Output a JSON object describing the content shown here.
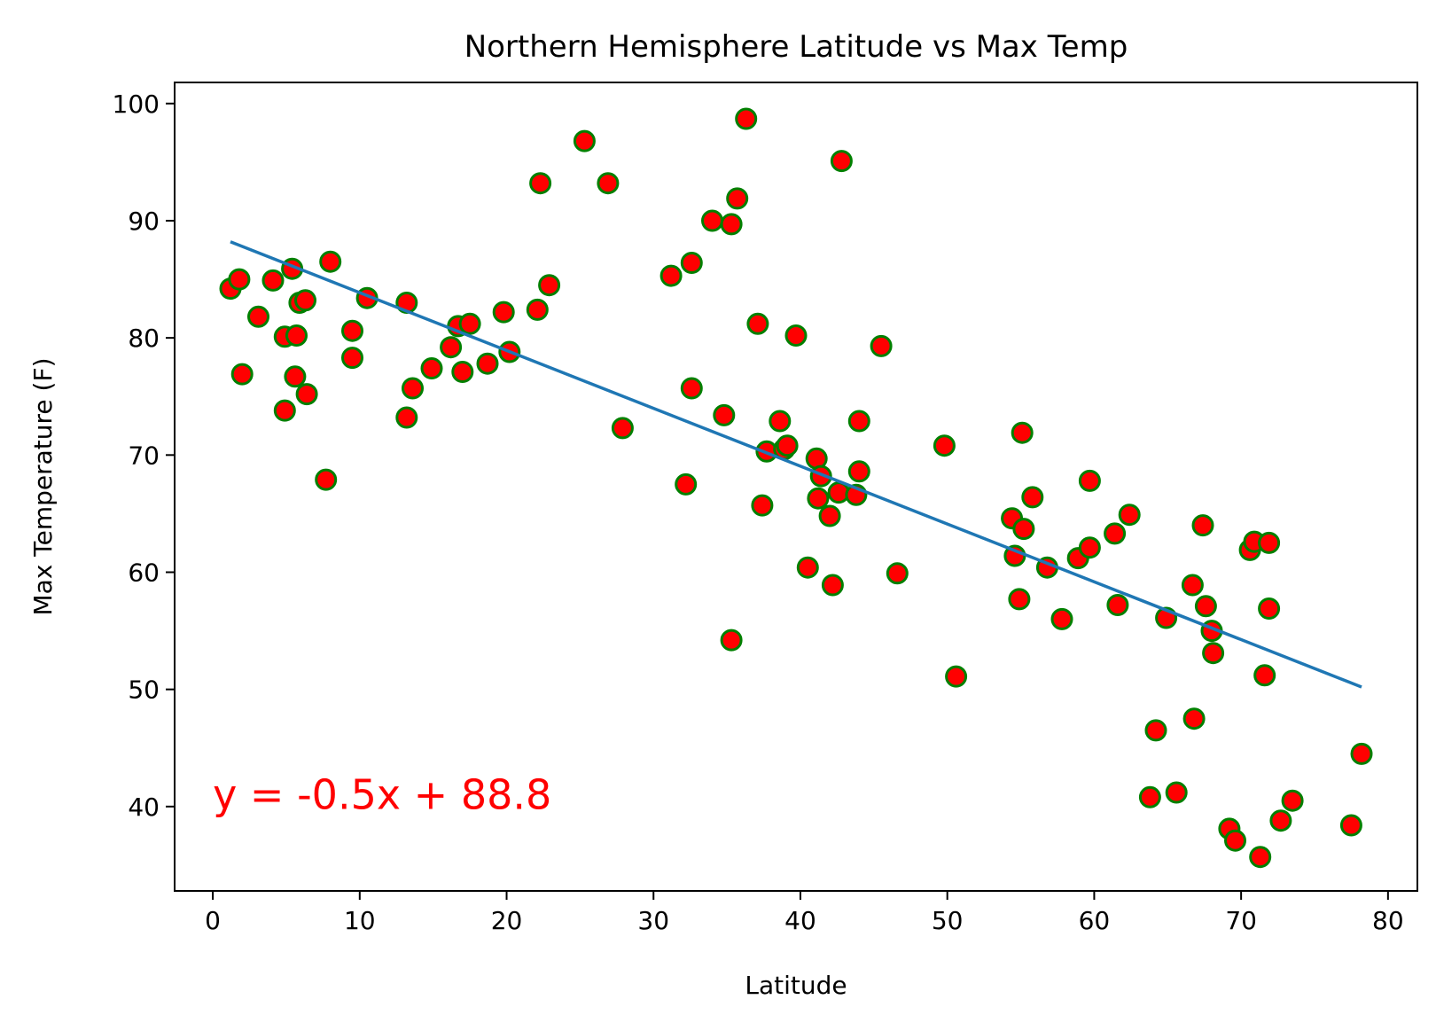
{
  "chart_data": {
    "type": "scatter",
    "title": "Northern Hemisphere Latitude vs Max Temp",
    "xlabel": "Latitude",
    "ylabel": "Max Temperature (F)",
    "xlim": [
      -2.6,
      82.0
    ],
    "ylim": [
      32.8,
      101.8
    ],
    "xticks": [
      0,
      10,
      20,
      30,
      40,
      50,
      60,
      70,
      80
    ],
    "yticks": [
      40,
      50,
      60,
      70,
      80,
      90,
      100
    ],
    "grid": false,
    "marker_face_color": "#ff0000",
    "marker_edge_color": "#008000",
    "line_color": "#1f77b4",
    "annotation_color": "#ff0000",
    "annotation": {
      "text": "y = -0.5x + 88.8",
      "x": 0.0,
      "y": 39.8
    },
    "regression": {
      "x": [
        1.2,
        78.2
      ],
      "y": [
        88.2,
        50.2
      ]
    },
    "points": [
      [
        1.2,
        84.2
      ],
      [
        1.8,
        85.0
      ],
      [
        2.0,
        76.9
      ],
      [
        3.1,
        81.8
      ],
      [
        4.1,
        84.9
      ],
      [
        4.9,
        73.8
      ],
      [
        4.9,
        80.1
      ],
      [
        5.4,
        85.9
      ],
      [
        5.6,
        76.7
      ],
      [
        5.7,
        80.2
      ],
      [
        5.9,
        83.0
      ],
      [
        6.3,
        83.2
      ],
      [
        6.4,
        75.2
      ],
      [
        7.7,
        67.9
      ],
      [
        8.0,
        86.5
      ],
      [
        9.5,
        80.6
      ],
      [
        9.5,
        78.3
      ],
      [
        10.5,
        83.4
      ],
      [
        13.2,
        83.0
      ],
      [
        13.2,
        73.2
      ],
      [
        13.6,
        75.7
      ],
      [
        14.9,
        77.4
      ],
      [
        16.2,
        79.2
      ],
      [
        16.7,
        81.0
      ],
      [
        17.0,
        77.1
      ],
      [
        17.5,
        81.2
      ],
      [
        18.7,
        77.8
      ],
      [
        19.8,
        82.2
      ],
      [
        20.2,
        78.8
      ],
      [
        22.1,
        82.4
      ],
      [
        22.3,
        93.2
      ],
      [
        22.9,
        84.5
      ],
      [
        25.3,
        96.8
      ],
      [
        26.9,
        93.2
      ],
      [
        27.9,
        72.3
      ],
      [
        31.2,
        85.3
      ],
      [
        32.2,
        67.5
      ],
      [
        32.6,
        86.4
      ],
      [
        32.6,
        75.7
      ],
      [
        34.0,
        90.0
      ],
      [
        34.8,
        73.4
      ],
      [
        35.3,
        54.2
      ],
      [
        35.3,
        89.7
      ],
      [
        35.7,
        91.9
      ],
      [
        36.3,
        98.7
      ],
      [
        37.1,
        81.2
      ],
      [
        37.4,
        65.7
      ],
      [
        37.7,
        70.3
      ],
      [
        38.6,
        72.9
      ],
      [
        38.9,
        70.5
      ],
      [
        39.1,
        70.8
      ],
      [
        39.7,
        80.2
      ],
      [
        40.5,
        60.4
      ],
      [
        41.1,
        69.7
      ],
      [
        41.2,
        66.3
      ],
      [
        41.4,
        68.2
      ],
      [
        42.0,
        64.8
      ],
      [
        42.2,
        58.9
      ],
      [
        42.6,
        66.8
      ],
      [
        42.8,
        95.1
      ],
      [
        43.8,
        66.6
      ],
      [
        44.0,
        72.9
      ],
      [
        44.0,
        68.6
      ],
      [
        45.5,
        79.3
      ],
      [
        46.6,
        59.9
      ],
      [
        49.8,
        70.8
      ],
      [
        50.6,
        51.1
      ],
      [
        54.4,
        64.6
      ],
      [
        54.6,
        61.4
      ],
      [
        54.9,
        57.7
      ],
      [
        55.1,
        71.9
      ],
      [
        55.2,
        63.7
      ],
      [
        55.8,
        66.4
      ],
      [
        56.8,
        60.4
      ],
      [
        57.8,
        56.0
      ],
      [
        58.9,
        61.2
      ],
      [
        59.7,
        67.8
      ],
      [
        59.7,
        62.1
      ],
      [
        61.4,
        63.3
      ],
      [
        61.6,
        57.2
      ],
      [
        62.4,
        64.9
      ],
      [
        63.8,
        40.8
      ],
      [
        64.2,
        46.5
      ],
      [
        64.9,
        56.1
      ],
      [
        65.6,
        41.2
      ],
      [
        66.7,
        58.9
      ],
      [
        66.8,
        47.5
      ],
      [
        67.4,
        64.0
      ],
      [
        67.6,
        57.1
      ],
      [
        68.0,
        55.0
      ],
      [
        68.1,
        53.1
      ],
      [
        69.2,
        38.1
      ],
      [
        69.6,
        37.1
      ],
      [
        70.6,
        61.9
      ],
      [
        70.9,
        62.6
      ],
      [
        71.3,
        35.7
      ],
      [
        71.6,
        51.2
      ],
      [
        71.9,
        62.5
      ],
      [
        71.9,
        56.9
      ],
      [
        72.7,
        38.8
      ],
      [
        73.5,
        40.5
      ],
      [
        77.5,
        38.4
      ],
      [
        78.2,
        44.5
      ]
    ]
  }
}
